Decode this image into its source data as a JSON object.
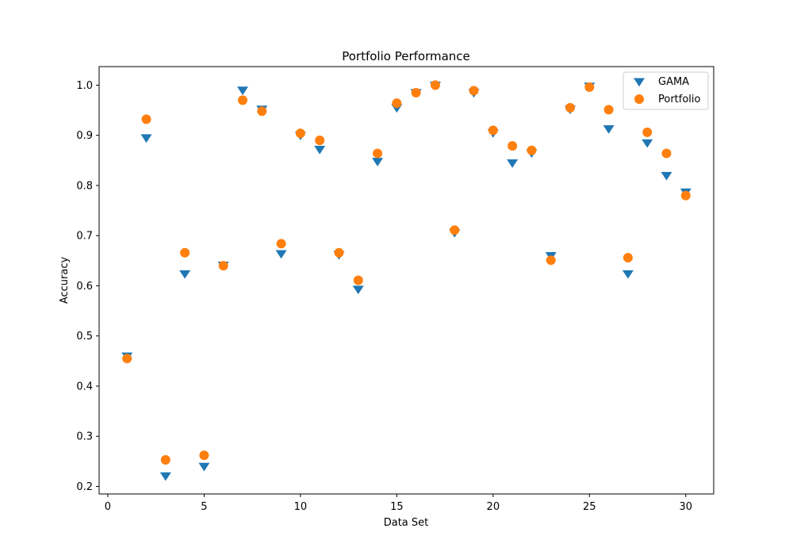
{
  "chart_data": {
    "type": "scatter",
    "title": "Portfolio Performance",
    "xlabel": "Data Set",
    "ylabel": "Accuracy",
    "xlim": [
      -0.45,
      31.45
    ],
    "ylim": [
      0.185,
      1.037
    ],
    "xticks": [
      0,
      5,
      10,
      15,
      20,
      25,
      30
    ],
    "yticks": [
      0.2,
      0.3,
      0.4,
      0.5,
      0.6,
      0.7,
      0.8,
      0.9,
      1.0
    ],
    "grid": false,
    "legend_position": "top-right",
    "series": [
      {
        "name": "GAMA",
        "marker": "triangle-down",
        "color": "#1f77b4",
        "x": [
          1,
          2,
          3,
          4,
          5,
          6,
          7,
          8,
          9,
          10,
          11,
          12,
          13,
          14,
          15,
          16,
          17,
          18,
          19,
          20,
          21,
          22,
          23,
          24,
          25,
          26,
          27,
          28,
          29,
          30
        ],
        "y": [
          0.46,
          0.895,
          0.221,
          0.624,
          0.24,
          0.641,
          0.99,
          0.952,
          0.664,
          0.9,
          0.872,
          0.662,
          0.593,
          0.848,
          0.955,
          0.985,
          1.0,
          0.706,
          0.985,
          0.905,
          0.845,
          0.865,
          0.66,
          0.952,
          0.998,
          0.913,
          0.624,
          0.885,
          0.82,
          0.787
        ]
      },
      {
        "name": "Portfolio",
        "marker": "circle",
        "color": "#ff7f0e",
        "x": [
          1,
          2,
          3,
          4,
          5,
          6,
          7,
          8,
          9,
          10,
          11,
          12,
          13,
          14,
          15,
          16,
          17,
          18,
          19,
          20,
          21,
          22,
          23,
          24,
          25,
          26,
          27,
          28,
          29,
          30
        ],
        "y": [
          0.455,
          0.932,
          0.253,
          0.666,
          0.262,
          0.64,
          0.97,
          0.948,
          0.684,
          0.904,
          0.89,
          0.666,
          0.611,
          0.864,
          0.964,
          0.985,
          1.0,
          0.711,
          0.989,
          0.91,
          0.879,
          0.87,
          0.651,
          0.955,
          0.996,
          0.951,
          0.656,
          0.906,
          0.864,
          0.78
        ]
      }
    ]
  }
}
